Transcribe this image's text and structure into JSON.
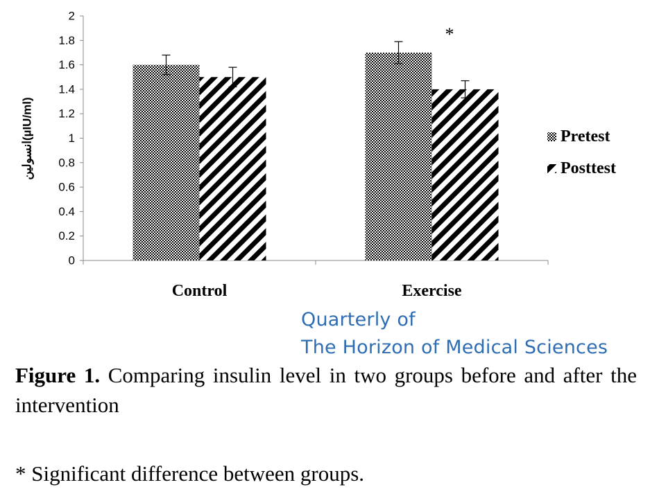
{
  "chart_data": {
    "type": "bar",
    "categories": [
      "Control",
      "Exercise"
    ],
    "series": [
      {
        "name": "Pretest",
        "values": [
          1.6,
          1.7
        ],
        "errors": [
          0.08,
          0.09
        ],
        "pattern": "checker"
      },
      {
        "name": "Posttest",
        "values": [
          1.5,
          1.4
        ],
        "errors": [
          0.08,
          0.07
        ],
        "pattern": "diagonal-stripes"
      }
    ],
    "ylabel": "انسولین(µIU/ml)",
    "xlabel": "",
    "ylim": [
      0,
      2
    ],
    "yticks": [
      "0",
      "0.2",
      "0.4",
      "0.6",
      "0.8",
      "1",
      "1.2",
      "1.4",
      "1.6",
      "1.8",
      "2"
    ],
    "legend_position": "right",
    "annotation": {
      "text": "*",
      "category": "Exercise"
    },
    "grid": false
  },
  "watermark": {
    "line1": "Quarterly of",
    "line2": "The Horizon of Medical Sciences"
  },
  "caption": {
    "label": "Figure 1.",
    "text": " Comparing insulin level in two groups before and after the intervention"
  },
  "footnote": "* Significant difference between groups."
}
